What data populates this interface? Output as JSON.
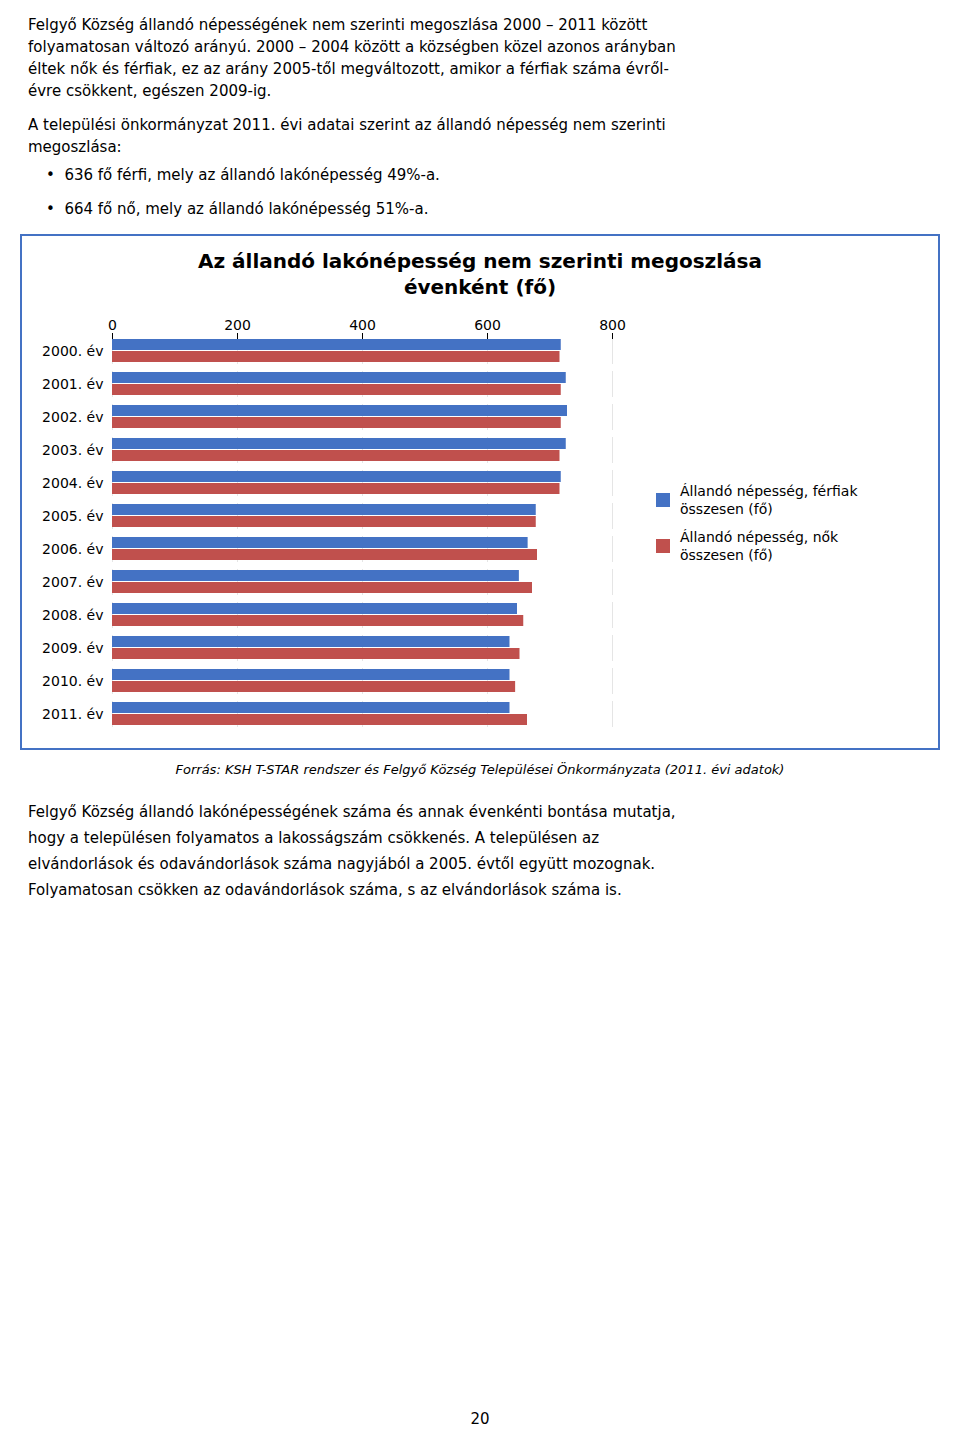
{
  "chart_data": {
    "type": "bar",
    "orientation": "horizontal",
    "title": "Az állandó lakónépesség nem szerinti megoszlása\névenként (fő)",
    "categories": [
      "2000. év",
      "2001. év",
      "2002. év",
      "2003. év",
      "2004. év",
      "2005. év",
      "2006. év",
      "2007. év",
      "2008. év",
      "2009. év",
      "2010. év",
      "2011. év"
    ],
    "series": [
      {
        "name": "Állandó népesség, férfiak\nösszesen (fő)",
        "color": "#4472C4",
        "values": [
          718,
          726,
          728,
          726,
          718,
          678,
          665,
          651,
          648,
          636,
          636,
          636
        ]
      },
      {
        "name": "Állandó népesség, nők\nösszesen (fő)",
        "color": "#C0504D",
        "values": [
          716,
          718,
          718,
          716,
          716,
          678,
          680,
          672,
          658,
          652,
          645,
          664
        ]
      }
    ],
    "xlim": [
      0,
      800
    ],
    "xticks": [
      0,
      200,
      400,
      600,
      800
    ],
    "grid": true,
    "legend": "right"
  },
  "header_lines": [
    "Felgyő Község állandó népességének nem szerinti megoszlása 2000 – 2011 között",
    "folyamatosan változó arányú. 2000 – 2004 között a községben közel azonos arányban",
    "éltek nők és férfiak, ez az arány 2005-től megváltozott, amikor a férfiak száma évről-",
    "évre csökkent, egészen 2009-ig."
  ],
  "paragraph_lines": [
    "A települési önkormányzat 2011. évi adatai szerint az állandó népesség nem szerinti",
    "megoszlása:"
  ],
  "bullets": [
    "•  636 fő férfi, mely az állandó lakónépesség 49%-a.",
    "•  664 fő nő, mely az állandó lakónépesség 51%-a."
  ],
  "source": "Forrás: KSH T-STAR rendszer és Felgyő Község Települései Önkormányzata (2011. évi adatok)",
  "body_lines": [
    "Felgyő Község állandó lakónépességének száma és annak évenkénti bontása mutatja,",
    "hogy a településen folyamatos a lakosságszám csökkenés. A településen az",
    "elvándorlások és odavándorlások száma nagyjából a 2005. évtől együtt mozognak.",
    "Folyamatosan csökken az odavándorlások száma, s az elvándorlások száma is."
  ],
  "page_number": "20"
}
